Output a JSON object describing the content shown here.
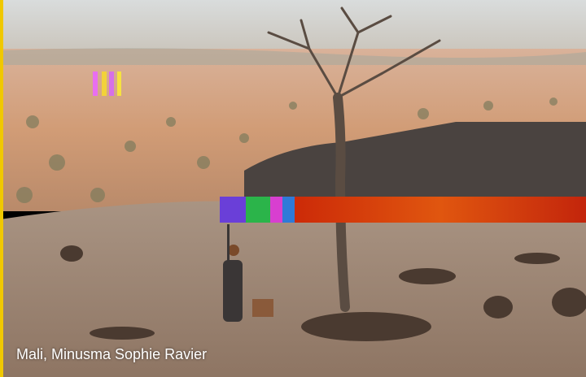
{
  "caption": "Mali, Minusma Sophie Ravier"
}
